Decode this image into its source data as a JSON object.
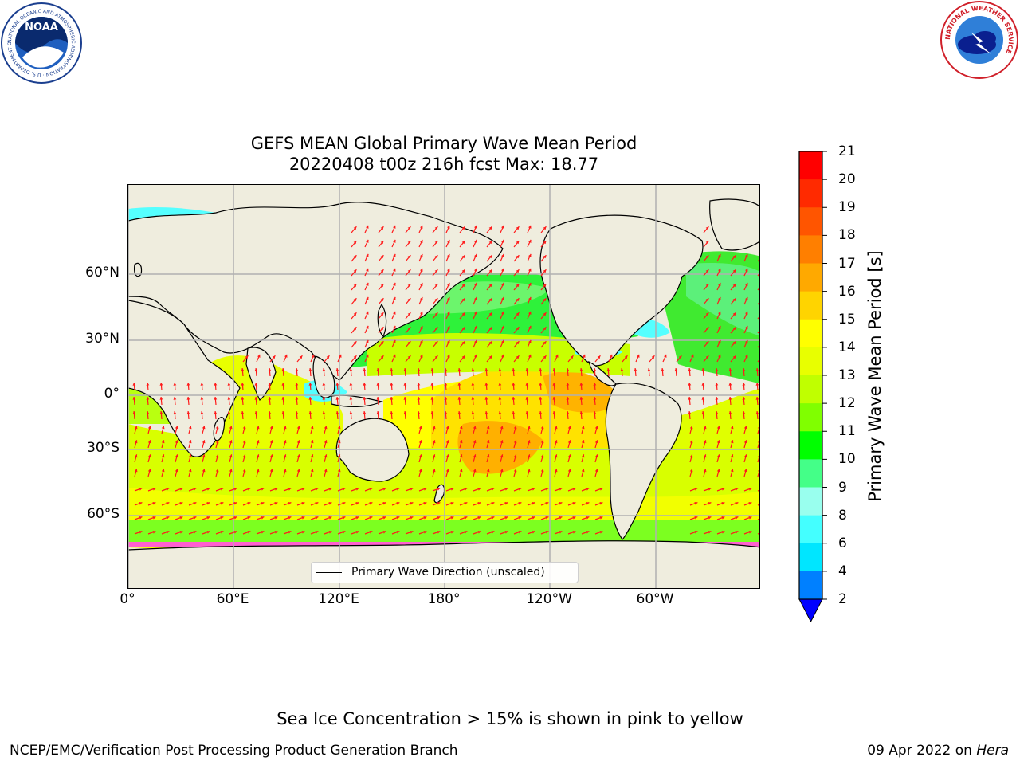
{
  "title": "GEFS MEAN Global Primary Wave Mean Period",
  "subtitle": "20220408 t00z 216h fcst   Max: 18.77",
  "map": {
    "lat_labels": [
      "60°N",
      "30°N",
      "0°",
      "30°S",
      "60°S"
    ],
    "lon_labels": [
      "0°",
      "60°E",
      "120°E",
      "180°",
      "120°W",
      "60°W"
    ],
    "legend_label": "Primary Wave Direction (unscaled)",
    "arrow_color": "#ff1a1a",
    "land_color": "#efedde",
    "grid_color": "#b0b0b0"
  },
  "colorbar": {
    "title": "Primary Wave Mean Period [s]",
    "ticks": [
      "21",
      "20",
      "19",
      "18",
      "17",
      "16",
      "15",
      "14",
      "13",
      "12",
      "11",
      "10",
      "9",
      "8",
      "6",
      "4",
      "2"
    ],
    "colors": [
      "#ff0000",
      "#ff2a00",
      "#ff5500",
      "#ff7f00",
      "#ffa900",
      "#ffd400",
      "#ffff00",
      "#e8ff00",
      "#c0ff00",
      "#80ff00",
      "#00ff00",
      "#44ff88",
      "#99ffee",
      "#44ffff",
      "#00e6ff",
      "#0080ff"
    ],
    "extend_color": "#0000ff"
  },
  "note": "Sea Ice Concentration > 15% is shown in pink to yellow",
  "footer": {
    "left": "NCEP/EMC/Verification Post Processing Product Generation Branch",
    "date": "09 Apr 2022 on ",
    "machine": "Hera"
  },
  "logos": {
    "noaa": "NOAA",
    "noaa_ring": "NATIONAL OCEANIC AND ATMOSPHERIC ADMINISTRATION · U.S. DEPARTMENT OF COMMERCE",
    "nws_ring": "NATIONAL WEATHER SERVICE"
  }
}
